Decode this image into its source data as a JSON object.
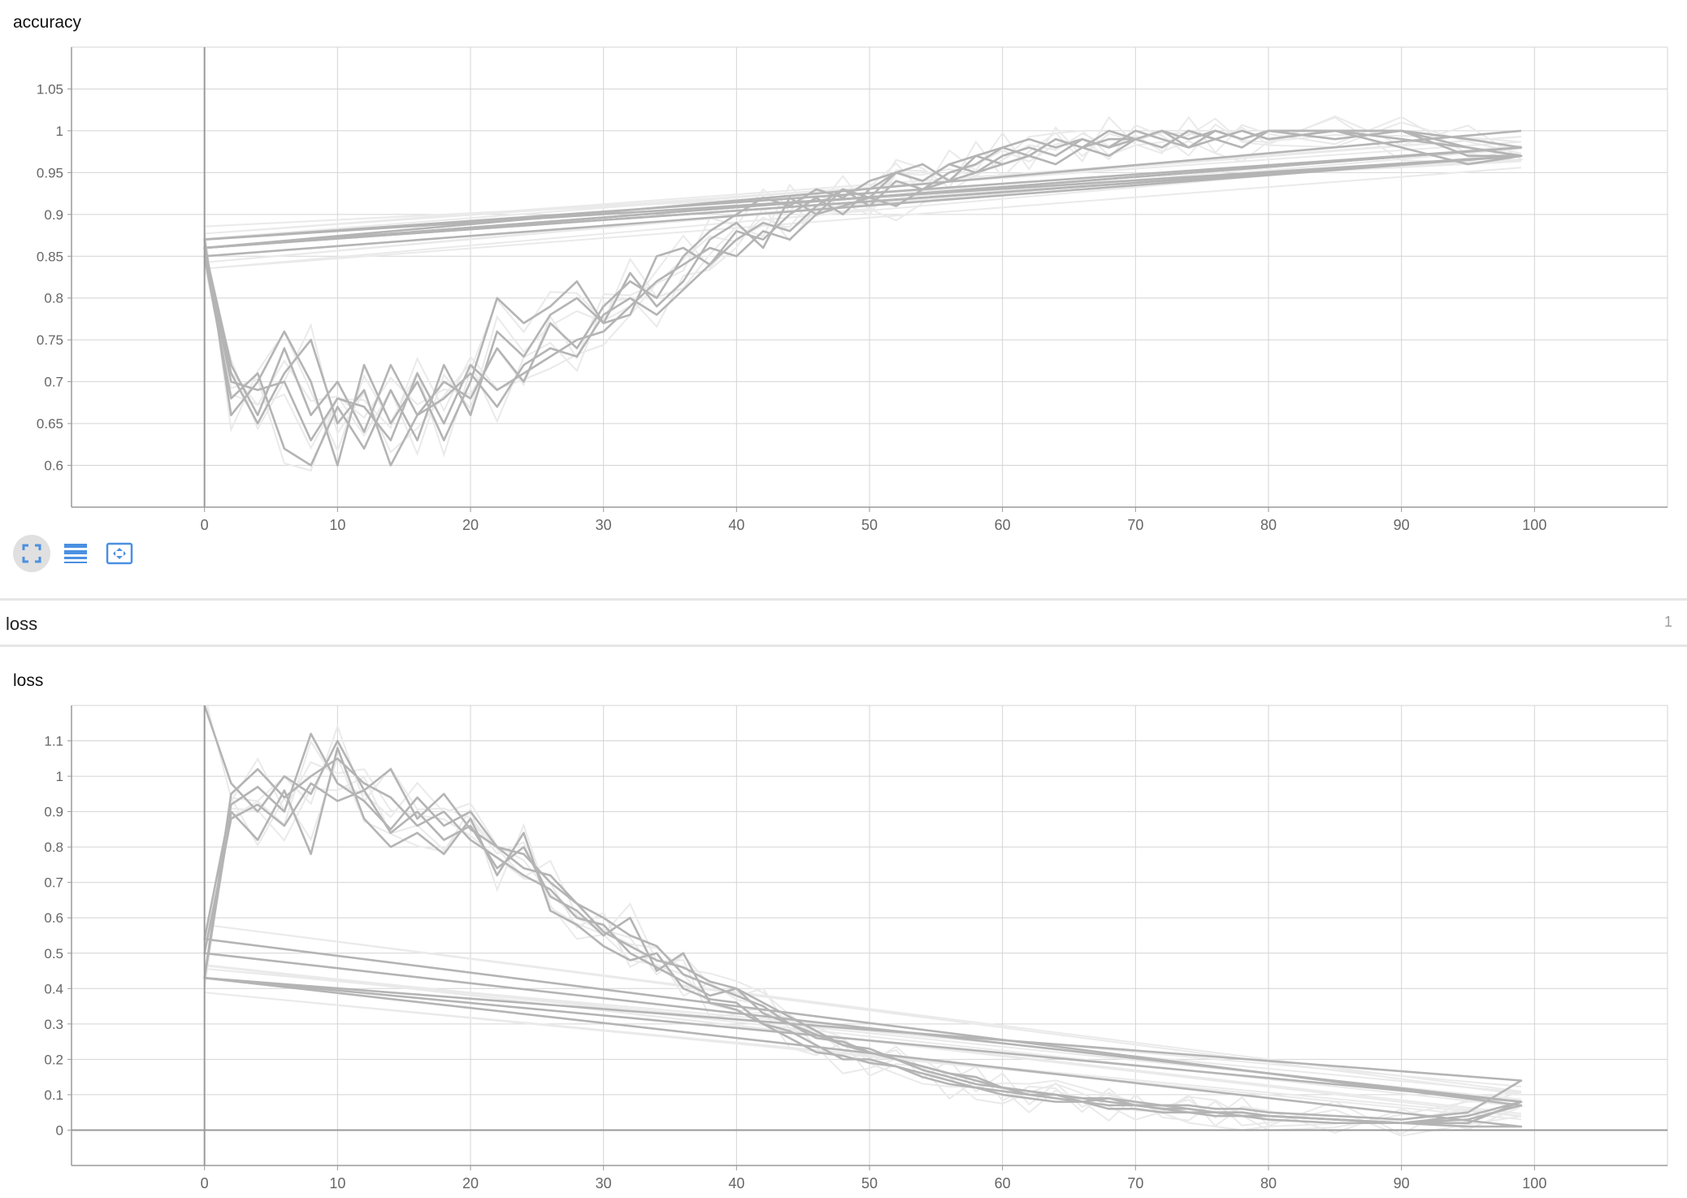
{
  "charts": {
    "accuracy": {
      "title": "accuracy"
    },
    "loss": {
      "title": "loss"
    }
  },
  "section": {
    "title": "loss",
    "count": "1"
  },
  "toolbar": {
    "buttons": [
      {
        "icon": "fullscreen-icon",
        "active": true
      },
      {
        "icon": "toggle-log-scale-icon",
        "active": false
      },
      {
        "icon": "fit-domain-icon",
        "active": false
      }
    ]
  },
  "colors": {
    "run_line": "#b4b4b4",
    "run_raw": "#eaeaea",
    "grid": "#d4d4d4",
    "axis": "#9a9a9a",
    "accent": "#4a90e2"
  },
  "chart_data": [
    {
      "type": "line",
      "title": "accuracy",
      "xlim": [
        -10,
        110
      ],
      "ylim": [
        0.55,
        1.1
      ],
      "xticks": [
        0,
        10,
        20,
        30,
        40,
        50,
        60,
        70,
        80,
        90,
        100
      ],
      "yticks": [
        0.6,
        0.65,
        0.7,
        0.75,
        0.8,
        0.85,
        0.9,
        0.95,
        1,
        1.05
      ],
      "grid": true,
      "series": [
        {
          "x": [
            0,
            2,
            4,
            6,
            8,
            10,
            12,
            14,
            16,
            18,
            20,
            22,
            24,
            26,
            28,
            30,
            32,
            34,
            36,
            38,
            40,
            42,
            44,
            46,
            48,
            50,
            52,
            54,
            56,
            58,
            60,
            62,
            64,
            66,
            68,
            70,
            72,
            74,
            76,
            78,
            80,
            85,
            90,
            95,
            99,
            0,
            99
          ],
          "y": [
            0.86,
            0.72,
            0.66,
            0.74,
            0.66,
            0.7,
            0.64,
            0.72,
            0.66,
            0.7,
            0.68,
            0.74,
            0.7,
            0.77,
            0.74,
            0.79,
            0.82,
            0.8,
            0.85,
            0.88,
            0.9,
            0.92,
            0.91,
            0.93,
            0.92,
            0.94,
            0.95,
            0.94,
            0.96,
            0.97,
            0.98,
            0.97,
            0.99,
            0.98,
            0.99,
            0.99,
            1.0,
            0.99,
            1.0,
            0.99,
            1.0,
            1.0,
            1.0,
            0.99,
            0.98,
            0.86,
            1.0
          ]
        },
        {
          "x": [
            0,
            2,
            4,
            6,
            8,
            10,
            12,
            14,
            16,
            18,
            20,
            22,
            24,
            26,
            28,
            30,
            32,
            34,
            36,
            38,
            40,
            42,
            44,
            46,
            48,
            50,
            52,
            54,
            56,
            58,
            60,
            62,
            64,
            66,
            68,
            70,
            72,
            74,
            76,
            78,
            80,
            85,
            90,
            95,
            99,
            0,
            99
          ],
          "y": [
            0.85,
            0.68,
            0.71,
            0.62,
            0.6,
            0.67,
            0.62,
            0.69,
            0.63,
            0.72,
            0.66,
            0.76,
            0.73,
            0.78,
            0.8,
            0.77,
            0.83,
            0.79,
            0.82,
            0.87,
            0.89,
            0.86,
            0.92,
            0.9,
            0.93,
            0.91,
            0.94,
            0.93,
            0.95,
            0.96,
            0.98,
            0.99,
            0.98,
            0.99,
            0.98,
            1.0,
            0.99,
            0.98,
            1.0,
            0.99,
            1.0,
            0.99,
            1.0,
            0.97,
            0.97,
            0.85,
            0.97
          ]
        },
        {
          "x": [
            0,
            2,
            4,
            6,
            8,
            10,
            12,
            14,
            16,
            18,
            20,
            22,
            24,
            26,
            28,
            30,
            32,
            34,
            36,
            38,
            40,
            42,
            44,
            46,
            48,
            50,
            52,
            54,
            56,
            58,
            60,
            62,
            64,
            66,
            68,
            70,
            72,
            74,
            76,
            78,
            80,
            85,
            90,
            95,
            99,
            0,
            99
          ],
          "y": [
            0.85,
            0.7,
            0.69,
            0.7,
            0.63,
            0.68,
            0.67,
            0.63,
            0.71,
            0.65,
            0.72,
            0.69,
            0.71,
            0.73,
            0.75,
            0.76,
            0.79,
            0.82,
            0.84,
            0.86,
            0.85,
            0.88,
            0.87,
            0.9,
            0.91,
            0.92,
            0.91,
            0.93,
            0.94,
            0.95,
            0.96,
            0.97,
            0.96,
            0.98,
            0.97,
            0.99,
            0.98,
            1.0,
            0.99,
            0.98,
            1.0,
            1.0,
            0.99,
            0.98,
            0.97,
            0.86,
            0.98
          ]
        },
        {
          "x": [
            0,
            2,
            4,
            6,
            8,
            10,
            12,
            14,
            16,
            18,
            20,
            22,
            24,
            26,
            28,
            30,
            32,
            34,
            36,
            38,
            40,
            42,
            44,
            46,
            48,
            50,
            52,
            54,
            56,
            58,
            60,
            62,
            64,
            66,
            68,
            70,
            72,
            74,
            76,
            78,
            80,
            85,
            90,
            95,
            99,
            0,
            99
          ],
          "y": [
            0.85,
            0.71,
            0.65,
            0.71,
            0.75,
            0.65,
            0.69,
            0.6,
            0.66,
            0.68,
            0.71,
            0.67,
            0.72,
            0.74,
            0.73,
            0.78,
            0.8,
            0.78,
            0.81,
            0.84,
            0.87,
            0.89,
            0.88,
            0.91,
            0.93,
            0.92,
            0.95,
            0.94,
            0.96,
            0.95,
            0.97,
            0.98,
            0.97,
            0.99,
            0.98,
            0.99,
            1.0,
            0.98,
            0.99,
            1.0,
            0.99,
            1.0,
            0.98,
            0.96,
            0.97,
            0.86,
            0.97
          ]
        },
        {
          "x": [
            0,
            2,
            4,
            6,
            8,
            10,
            12,
            14,
            16,
            18,
            20,
            22,
            24,
            26,
            28,
            30,
            32,
            34,
            36,
            38,
            40,
            42,
            44,
            46,
            48,
            50,
            52,
            54,
            56,
            58,
            60,
            62,
            64,
            66,
            68,
            70,
            72,
            74,
            76,
            78,
            80,
            85,
            90,
            95,
            99,
            0,
            99
          ],
          "y": [
            0.87,
            0.66,
            0.7,
            0.76,
            0.7,
            0.6,
            0.72,
            0.65,
            0.7,
            0.63,
            0.7,
            0.8,
            0.77,
            0.79,
            0.82,
            0.77,
            0.78,
            0.85,
            0.86,
            0.84,
            0.88,
            0.87,
            0.9,
            0.92,
            0.9,
            0.93,
            0.95,
            0.96,
            0.94,
            0.97,
            0.96,
            0.97,
            0.99,
            0.98,
            1.0,
            0.99,
            0.98,
            1.0,
            0.99,
            1.0,
            0.99,
            1.0,
            1.0,
            0.98,
            0.97,
            0.87,
            0.98
          ]
        }
      ]
    },
    {
      "type": "line",
      "title": "loss",
      "xlim": [
        -10,
        110
      ],
      "ylim": [
        -0.1,
        1.2
      ],
      "xticks": [
        0,
        10,
        20,
        30,
        40,
        50,
        60,
        70,
        80,
        90,
        100
      ],
      "yticks": [
        0,
        0.1,
        0.2,
        0.3,
        0.4,
        0.5,
        0.6,
        0.7,
        0.8,
        0.9,
        1,
        1.1
      ],
      "grid": true,
      "series": [
        {
          "x": [
            0,
            2,
            4,
            6,
            8,
            10,
            12,
            14,
            16,
            18,
            20,
            22,
            24,
            26,
            28,
            30,
            32,
            34,
            36,
            38,
            40,
            42,
            44,
            46,
            48,
            50,
            52,
            54,
            56,
            58,
            60,
            62,
            64,
            66,
            68,
            70,
            72,
            74,
            76,
            78,
            80,
            85,
            90,
            95,
            99,
            0,
            99
          ],
          "y": [
            0.43,
            0.95,
            1.02,
            0.94,
            1.0,
            1.05,
            0.98,
            0.94,
            0.86,
            0.9,
            0.82,
            0.77,
            0.72,
            0.68,
            0.6,
            0.58,
            0.5,
            0.46,
            0.42,
            0.38,
            0.4,
            0.33,
            0.3,
            0.26,
            0.25,
            0.22,
            0.2,
            0.18,
            0.16,
            0.15,
            0.12,
            0.11,
            0.1,
            0.09,
            0.09,
            0.08,
            0.07,
            0.07,
            0.06,
            0.06,
            0.05,
            0.04,
            0.03,
            0.05,
            0.14,
            0.43,
            0.14
          ]
        },
        {
          "x": [
            0,
            2,
            4,
            6,
            8,
            10,
            12,
            14,
            16,
            18,
            20,
            22,
            24,
            26,
            28,
            30,
            32,
            34,
            36,
            38,
            40,
            42,
            44,
            46,
            48,
            50,
            52,
            54,
            56,
            58,
            60,
            62,
            64,
            66,
            68,
            70,
            72,
            74,
            76,
            78,
            80,
            85,
            90,
            95,
            99,
            0,
            99
          ],
          "y": [
            0.5,
            0.88,
            0.92,
            0.86,
            0.98,
            0.93,
            0.96,
            0.84,
            0.9,
            0.82,
            0.86,
            0.74,
            0.8,
            0.66,
            0.62,
            0.55,
            0.6,
            0.45,
            0.5,
            0.36,
            0.34,
            0.3,
            0.28,
            0.24,
            0.2,
            0.2,
            0.18,
            0.16,
            0.14,
            0.12,
            0.11,
            0.1,
            0.09,
            0.08,
            0.09,
            0.07,
            0.06,
            0.06,
            0.05,
            0.05,
            0.04,
            0.03,
            0.02,
            0.04,
            0.08,
            0.5,
            0.08
          ]
        },
        {
          "x": [
            0,
            2,
            4,
            6,
            8,
            10,
            12,
            14,
            16,
            18,
            20,
            22,
            24,
            26,
            28,
            30,
            32,
            34,
            36,
            38,
            40,
            42,
            44,
            46,
            48,
            50,
            52,
            54,
            56,
            58,
            60,
            62,
            64,
            66,
            68,
            70,
            72,
            74,
            76,
            78,
            80,
            85,
            90,
            95,
            99,
            0,
            99
          ],
          "y": [
            0.54,
            0.92,
            0.97,
            0.9,
            1.12,
            0.98,
            0.93,
            0.85,
            0.94,
            0.86,
            0.9,
            0.8,
            0.78,
            0.7,
            0.64,
            0.6,
            0.55,
            0.52,
            0.44,
            0.41,
            0.38,
            0.35,
            0.3,
            0.27,
            0.24,
            0.22,
            0.2,
            0.17,
            0.15,
            0.13,
            0.12,
            0.1,
            0.1,
            0.08,
            0.07,
            0.07,
            0.06,
            0.05,
            0.05,
            0.04,
            0.04,
            0.03,
            0.02,
            0.03,
            0.07,
            0.54,
            0.07
          ]
        },
        {
          "x": [
            0,
            2,
            4,
            6,
            8,
            10,
            12,
            14,
            16,
            18,
            20,
            22,
            24,
            26,
            28,
            30,
            32,
            34,
            36,
            38,
            40,
            42,
            44,
            46,
            48,
            50,
            52,
            54,
            56,
            58,
            60,
            62,
            64,
            66,
            68,
            70,
            72,
            74,
            76,
            78,
            80,
            85,
            90,
            95,
            99,
            0,
            99
          ],
          "y": [
            0.43,
            0.9,
            0.82,
            0.96,
            0.78,
            1.08,
            0.88,
            0.8,
            0.84,
            0.78,
            0.88,
            0.72,
            0.84,
            0.62,
            0.58,
            0.52,
            0.48,
            0.5,
            0.4,
            0.37,
            0.36,
            0.3,
            0.26,
            0.22,
            0.21,
            0.19,
            0.18,
            0.15,
            0.13,
            0.12,
            0.1,
            0.09,
            0.08,
            0.08,
            0.06,
            0.06,
            0.05,
            0.05,
            0.04,
            0.04,
            0.03,
            0.02,
            0.02,
            0.01,
            0.01,
            0.43,
            0.01
          ]
        },
        {
          "x": [
            0,
            2,
            4,
            6,
            8,
            10,
            12,
            14,
            16,
            18,
            20,
            22,
            24,
            26,
            28,
            30,
            32,
            34,
            36,
            38,
            40,
            42,
            44,
            46,
            48,
            50,
            52,
            54,
            56,
            58,
            60,
            62,
            64,
            66,
            68,
            70,
            72,
            74,
            76,
            78,
            80,
            85,
            90,
            95,
            99,
            0,
            99
          ],
          "y": [
            1.2,
            0.98,
            0.9,
            1.0,
            0.95,
            1.1,
            0.96,
            1.02,
            0.88,
            0.95,
            0.85,
            0.8,
            0.74,
            0.72,
            0.64,
            0.56,
            0.52,
            0.48,
            0.46,
            0.42,
            0.4,
            0.36,
            0.32,
            0.28,
            0.24,
            0.23,
            0.2,
            0.18,
            0.16,
            0.14,
            0.12,
            0.11,
            0.1,
            0.09,
            0.08,
            0.07,
            0.07,
            0.06,
            0.05,
            0.05,
            0.04,
            0.03,
            0.02,
            0.02,
            0.08,
            0.43,
            0.08
          ]
        }
      ]
    }
  ]
}
